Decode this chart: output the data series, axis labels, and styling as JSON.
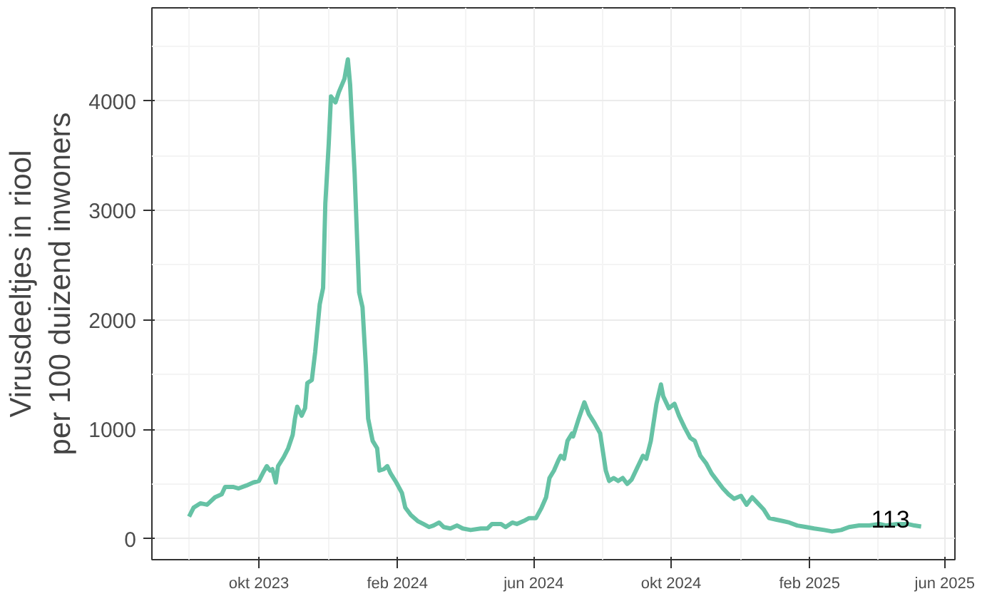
{
  "chart_data": {
    "type": "line",
    "ylabel": "Virusdeeltjes in riool\nper 100 duizend inwoners",
    "x": [
      "2023-07-31",
      "2023-08-04",
      "2023-08-10",
      "2023-08-16",
      "2023-08-23",
      "2023-08-29",
      "2023-09-01",
      "2023-09-08",
      "2023-09-13",
      "2023-09-20",
      "2023-09-26",
      "2023-10-01",
      "2023-10-05",
      "2023-10-08",
      "2023-10-11",
      "2023-10-13",
      "2023-10-16",
      "2023-10-18",
      "2023-10-23",
      "2023-10-27",
      "2023-10-31",
      "2023-11-02",
      "2023-11-04",
      "2023-11-08",
      "2023-11-11",
      "2023-11-13",
      "2023-11-17",
      "2023-11-20",
      "2023-11-24",
      "2023-11-27",
      "2023-11-29",
      "2023-12-02",
      "2023-12-04",
      "2023-12-08",
      "2023-12-11",
      "2023-12-16",
      "2023-12-19",
      "2023-12-21",
      "2023-12-25",
      "2023-12-29",
      "2024-01-01",
      "2024-01-04",
      "2024-01-06",
      "2024-01-10",
      "2024-01-14",
      "2024-01-16",
      "2024-01-20",
      "2024-01-23",
      "2024-01-26",
      "2024-01-31",
      "2024-02-05",
      "2024-02-08",
      "2024-02-13",
      "2024-02-19",
      "2024-02-24",
      "2024-02-29",
      "2024-03-04",
      "2024-03-09",
      "2024-03-13",
      "2024-03-19",
      "2024-03-25",
      "2024-03-30",
      "2024-04-06",
      "2024-04-15",
      "2024-04-21",
      "2024-04-25",
      "2024-05-03",
      "2024-05-07",
      "2024-05-13",
      "2024-05-17",
      "2024-05-23",
      "2024-05-28",
      "2024-06-03",
      "2024-06-08",
      "2024-06-12",
      "2024-06-15",
      "2024-06-19",
      "2024-06-23",
      "2024-06-25",
      "2024-06-28",
      "2024-07-01",
      "2024-07-05",
      "2024-07-06",
      "2024-07-11",
      "2024-07-16",
      "2024-07-20",
      "2024-07-25",
      "2024-07-30",
      "2024-08-04",
      "2024-08-07",
      "2024-08-11",
      "2024-08-15",
      "2024-08-19",
      "2024-08-23",
      "2024-08-27",
      "2024-09-01",
      "2024-09-06",
      "2024-09-09",
      "2024-09-13",
      "2024-09-18",
      "2024-09-22",
      "2024-09-24",
      "2024-09-29",
      "2024-10-04",
      "2024-10-08",
      "2024-10-13",
      "2024-10-18",
      "2024-10-22",
      "2024-10-27",
      "2024-11-01",
      "2024-11-06",
      "2024-11-11",
      "2024-11-16",
      "2024-11-21",
      "2024-11-26",
      "2024-12-02",
      "2024-12-07",
      "2024-12-12",
      "2024-12-17",
      "2024-12-22",
      "2024-12-27",
      "2025-01-02",
      "2025-01-08",
      "2025-01-14",
      "2025-01-21",
      "2025-01-29",
      "2025-02-05",
      "2025-02-14",
      "2025-02-21",
      "2025-03-01",
      "2025-03-08",
      "2025-03-17",
      "2025-03-26",
      "2025-04-04",
      "2025-04-10",
      "2025-04-20",
      "2025-04-29",
      "2025-05-05",
      "2025-05-11"
    ],
    "series": [
      {
        "color": "#66c2a5",
        "values": [
          203,
          285,
          325,
          312,
          380,
          407,
          475,
          475,
          461,
          488,
          515,
          529,
          610,
          664,
          624,
          637,
          515,
          664,
          746,
          827,
          949,
          1098,
          1207,
          1125,
          1193,
          1424,
          1451,
          1708,
          2142,
          2292,
          3064,
          3607,
          4041,
          3986,
          4081,
          4203,
          4380,
          4149,
          3336,
          2251,
          2115,
          1573,
          1098,
          895,
          827,
          624,
          637,
          664,
          597,
          515,
          420,
          285,
          217,
          163,
          136,
          108,
          122,
          149,
          108,
          95,
          122,
          95,
          81,
          95,
          95,
          136,
          136,
          108,
          149,
          136,
          163,
          190,
          190,
          285,
          380,
          556,
          624,
          719,
          759,
          732,
          895,
          963,
          936,
          1098,
          1247,
          1139,
          1058,
          963,
          624,
          529,
          556,
          529,
          556,
          502,
          542,
          651,
          759,
          732,
          895,
          1234,
          1410,
          1302,
          1193,
          1234,
          1125,
          1017,
          922,
          895,
          759,
          692,
          597,
          529,
          461,
          407,
          366,
          393,
          312,
          380,
          325,
          271,
          190,
          176,
          163,
          149,
          122,
          108,
          95,
          81,
          68,
          81,
          108,
          122,
          122,
          136,
          122,
          136,
          136,
          122,
          113
        ]
      }
    ],
    "annotations": [
      {
        "text": "113",
        "x": "2025-05-11",
        "y": 113
      }
    ],
    "xlim": [
      "2023-06-28",
      "2025-06-10"
    ],
    "xticks": [
      {
        "value": "2023-10-01",
        "label": "okt 2023"
      },
      {
        "value": "2024-02-01",
        "label": "feb 2024"
      },
      {
        "value": "2024-06-01",
        "label": "jun 2024"
      },
      {
        "value": "2024-10-01",
        "label": "okt 2024"
      },
      {
        "value": "2025-02-01",
        "label": "feb 2025"
      },
      {
        "value": "2025-06-01",
        "label": "jun 2025"
      }
    ],
    "ylim": [
      -190,
      4850
    ],
    "yticks": [
      0,
      1000,
      2000,
      3000,
      4000
    ],
    "grid": true,
    "line_style": "solid"
  }
}
